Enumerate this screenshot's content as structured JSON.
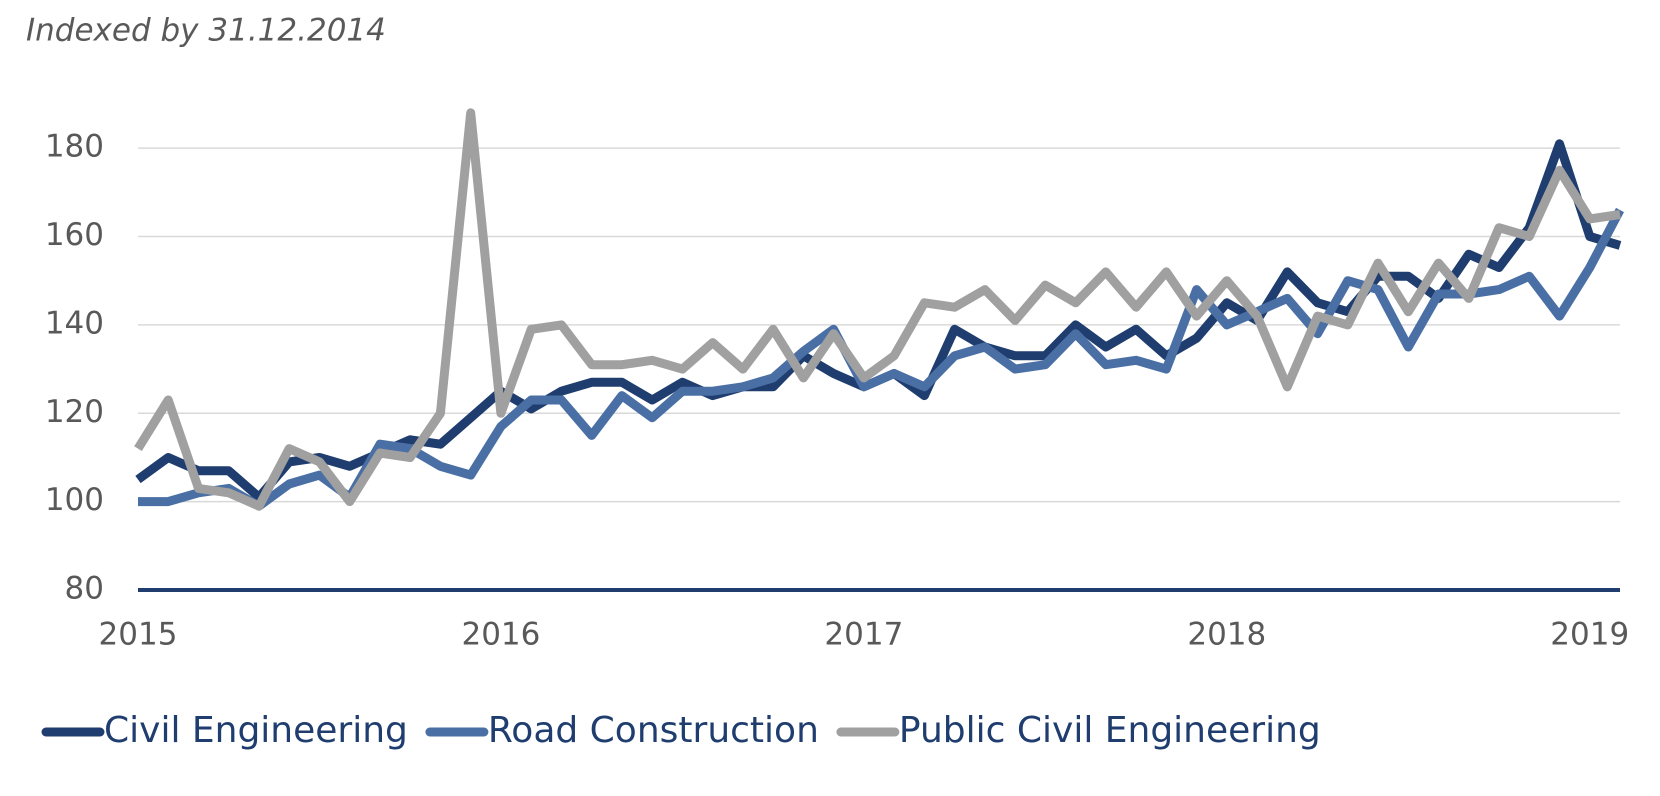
{
  "chart_data": {
    "type": "line",
    "title": "Indexed by 31.12.2014",
    "categories": [
      "2015",
      null,
      null,
      null,
      null,
      null,
      null,
      null,
      null,
      null,
      null,
      null,
      "2016",
      null,
      null,
      null,
      null,
      null,
      null,
      null,
      null,
      null,
      null,
      null,
      "2017",
      null,
      null,
      null,
      null,
      null,
      null,
      null,
      null,
      null,
      null,
      null,
      "2018",
      null,
      null,
      null,
      null,
      null,
      null,
      null,
      null,
      null,
      null,
      null,
      "2019",
      null
    ],
    "series": [
      {
        "name": "Civil Engineering",
        "color": "#1f3d6e",
        "values": [
          105,
          110,
          107,
          107,
          101,
          109,
          110,
          108,
          111,
          114,
          113,
          119,
          125,
          121,
          125,
          127,
          127,
          123,
          127,
          124,
          126,
          126,
          133,
          129,
          126,
          129,
          124,
          139,
          135,
          133,
          133,
          140,
          135,
          139,
          133,
          137,
          145,
          141,
          152,
          145,
          143,
          151,
          151,
          146,
          156,
          153,
          162,
          181,
          160,
          158
        ]
      },
      {
        "name": "Road Construction",
        "color": "#4a6fa5",
        "values": [
          100,
          100,
          102,
          103,
          99,
          104,
          106,
          101,
          113,
          112,
          108,
          106,
          117,
          123,
          123,
          115,
          124,
          119,
          125,
          125,
          126,
          128,
          134,
          139,
          126,
          129,
          126,
          133,
          135,
          130,
          131,
          138,
          131,
          132,
          130,
          148,
          140,
          143,
          146,
          138,
          150,
          148,
          135,
          147,
          147,
          148,
          151,
          142,
          153,
          166
        ]
      },
      {
        "name": "Public Civil Engineering",
        "color": "#a0a0a0",
        "values": [
          112,
          123,
          103,
          102,
          99,
          112,
          109,
          100,
          111,
          110,
          120,
          188,
          120,
          139,
          140,
          131,
          131,
          132,
          130,
          136,
          130,
          139,
          128,
          138,
          128,
          133,
          145,
          144,
          148,
          141,
          149,
          145,
          152,
          144,
          152,
          142,
          150,
          142,
          126,
          142,
          140,
          154,
          143,
          154,
          146,
          162,
          160,
          175,
          164,
          165
        ]
      }
    ],
    "ylim": [
      80,
      190
    ],
    "yticks": [
      80,
      100,
      120,
      140,
      160,
      180
    ],
    "grid": true,
    "legend": "bottom"
  }
}
